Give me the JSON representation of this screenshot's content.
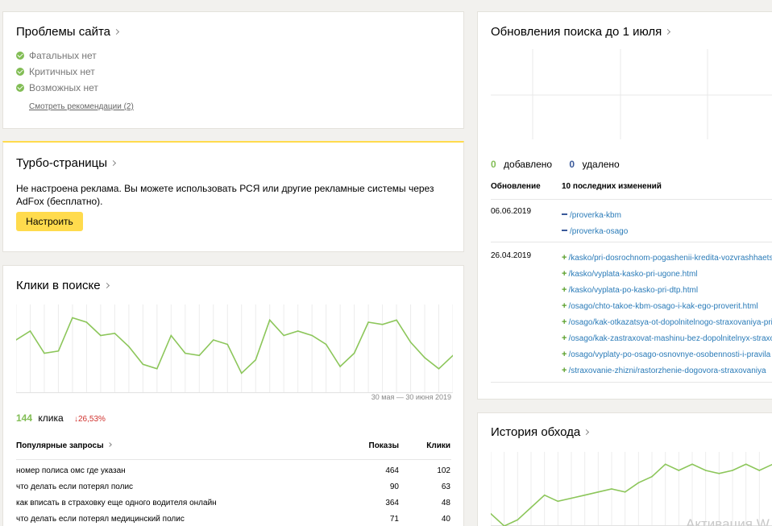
{
  "problems": {
    "title": "Проблемы сайта",
    "items": [
      "Фатальных нет",
      "Критичных нет",
      "Возможных нет"
    ],
    "link": "Смотреть рекомендации (2)",
    "ok_color": "#82bd55"
  },
  "turbo": {
    "title": "Турбо-страницы",
    "text_line1": "Не настроена реклама. Вы можете использовать РСЯ или другие рекламные системы через",
    "text_line2": "AdFox (бесплатно).",
    "button": "Настроить",
    "accent": "#ffdb4d"
  },
  "clicks": {
    "title": "Клики в поиске",
    "date_range": "30 мая — 30 июня 2019",
    "count": "144",
    "count_label": "клика",
    "change": "↓26,53%",
    "change_color": "#d0312d",
    "line_color": "#8cc65a",
    "chart_data": {
      "type": "line",
      "series": [
        {
          "values": [
            12,
            14,
            9,
            9.5,
            17,
            16,
            13,
            13.5,
            10.5,
            6.5,
            5.5,
            13,
            9,
            8.5,
            12,
            11,
            4.5,
            7.5,
            16.5,
            13,
            14,
            13,
            11,
            6,
            9,
            16,
            15.5,
            16.5,
            11.5,
            8,
            5.5,
            8.5
          ]
        }
      ],
      "ylim": [
        0,
        20
      ]
    },
    "table": {
      "col_query": "Популярные запросы",
      "col_shows": "Показы",
      "col_clicks": "Клики",
      "rows": [
        {
          "query": "номер полиса омс где указан",
          "shows": "464",
          "clicks": "102"
        },
        {
          "query": "что делать если потерял полис",
          "shows": "90",
          "clicks": "63"
        },
        {
          "query": "как вписать в страховку еще одного водителя онлайн",
          "shows": "364",
          "clicks": "48"
        },
        {
          "query": "что делать если потерял медицинский полис",
          "shows": "71",
          "clicks": "40"
        }
      ]
    }
  },
  "updates": {
    "title": "Обновления поиска до 1 июля",
    "added_count": "0",
    "added_label": "добавлено",
    "removed_count": "0",
    "removed_label": "удалено",
    "added_color": "#82bd55",
    "removed_color": "#3b5a9a",
    "col_update": "Обновление",
    "col_changes": "10 последних изменений",
    "groups": [
      {
        "date": "06.06.2019",
        "items": [
          {
            "type": "removed",
            "url": "/proverka-kbm"
          },
          {
            "type": "removed",
            "url": "/proverka-osago"
          }
        ]
      },
      {
        "date": "26.04.2019",
        "items": [
          {
            "type": "added",
            "url": "/kasko/pri-dosrochnom-pogashenii-kredita-vozvrashhaetsya"
          },
          {
            "type": "added",
            "url": "/kasko/vyplata-kasko-pri-ugone.html"
          },
          {
            "type": "added",
            "url": "/kasko/vyplata-po-kasko-pri-dtp.html"
          },
          {
            "type": "added",
            "url": "/osago/chto-takoe-kbm-osago-i-kak-ego-proverit.html"
          },
          {
            "type": "added",
            "url": "/osago/kak-otkazatsya-ot-dopolnitelnogo-straxovaniya-pri-oformlenii"
          },
          {
            "type": "added",
            "url": "/osago/kak-zastraxovat-mashinu-bez-dopolnitelnyx-straxovok"
          },
          {
            "type": "added",
            "url": "/osago/vyplaty-po-osago-osnovnye-osobennosti-i-pravila"
          },
          {
            "type": "added",
            "url": "/straxovanie-zhizni/rastorzhenie-dogovora-straxovaniya"
          }
        ]
      }
    ]
  },
  "history": {
    "title": "История обхода",
    "watermark": "Активация W",
    "chart_data": {
      "type": "line",
      "series": [
        {
          "values": [
            2,
            0,
            1,
            3,
            5,
            4,
            4.5,
            5,
            5.5,
            6,
            5.5,
            7,
            8,
            10,
            9,
            10,
            9,
            8.5,
            9,
            10,
            9,
            10
          ]
        }
      ],
      "ylim": [
        0,
        12
      ]
    }
  }
}
